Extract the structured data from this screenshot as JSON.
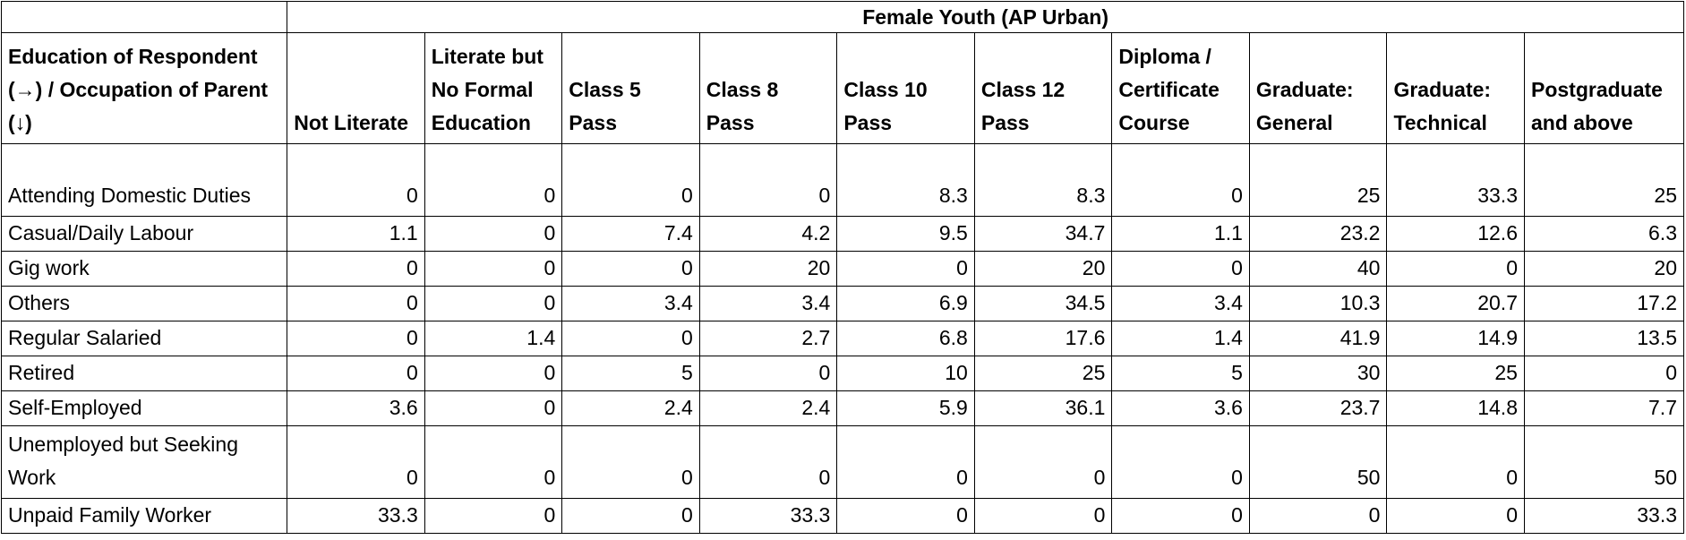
{
  "table": {
    "group_header": "Female Youth (AP Urban)",
    "corner_header": "Education of Respondent (→) / Occupation of Parent (↓)",
    "columns": [
      "Not Literate",
      "Literate but No Formal Education",
      "Class 5 Pass",
      "Class 8 Pass",
      "Class 10 Pass",
      "Class 12 Pass",
      "Diploma / Certificate Course",
      "Graduate: General",
      "Graduate: Technical",
      "Postgraduate and above"
    ],
    "rows": [
      {
        "label": "Attending Domestic Duties",
        "values": [
          "0",
          "0",
          "0",
          "0",
          "8.3",
          "8.3",
          "0",
          "25",
          "33.3",
          "25"
        ]
      },
      {
        "label": "Casual/Daily Labour",
        "values": [
          "1.1",
          "0",
          "7.4",
          "4.2",
          "9.5",
          "34.7",
          "1.1",
          "23.2",
          "12.6",
          "6.3"
        ]
      },
      {
        "label": "Gig work",
        "values": [
          "0",
          "0",
          "0",
          "20",
          "0",
          "20",
          "0",
          "40",
          "0",
          "20"
        ]
      },
      {
        "label": "Others",
        "values": [
          "0",
          "0",
          "3.4",
          "3.4",
          "6.9",
          "34.5",
          "3.4",
          "10.3",
          "20.7",
          "17.2"
        ]
      },
      {
        "label": "Regular Salaried",
        "values": [
          "0",
          "1.4",
          "0",
          "2.7",
          "6.8",
          "17.6",
          "1.4",
          "41.9",
          "14.9",
          "13.5"
        ]
      },
      {
        "label": "Retired",
        "values": [
          "0",
          "0",
          "5",
          "0",
          "10",
          "25",
          "5",
          "30",
          "25",
          "0"
        ]
      },
      {
        "label": "Self-Employed",
        "values": [
          "3.6",
          "0",
          "2.4",
          "2.4",
          "5.9",
          "36.1",
          "3.6",
          "23.7",
          "14.8",
          "7.7"
        ]
      },
      {
        "label": "Unemployed but Seeking Work",
        "values": [
          "0",
          "0",
          "0",
          "0",
          "0",
          "0",
          "0",
          "50",
          "0",
          "50"
        ]
      },
      {
        "label": "Unpaid Family Worker",
        "values": [
          "33.3",
          "0",
          "0",
          "33.3",
          "0",
          "0",
          "0",
          "0",
          "0",
          "33.3"
        ]
      }
    ]
  }
}
